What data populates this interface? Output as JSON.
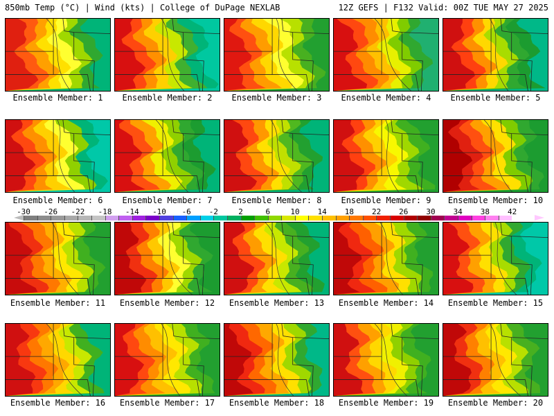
{
  "header": {
    "left_title": "850mb Temp (°C) | Wind (kts) | College of DuPage NEXLAB",
    "right_title": "12Z GEFS | F132 Valid: 00Z TUE MAY 27 2025"
  },
  "legend": {
    "ticks": [
      "-30",
      "-26",
      "-22",
      "-18",
      "-14",
      "-10",
      "-6",
      "-2",
      "2",
      "6",
      "10",
      "14",
      "18",
      "22",
      "26",
      "30",
      "34",
      "38",
      "42"
    ],
    "colors": [
      "#7f7f7f",
      "#8c8c8c",
      "#9a9a9a",
      "#a8a8a8",
      "#b6b6b6",
      "#c4c4c4",
      "#d2a0f0",
      "#c060f0",
      "#a020e0",
      "#7a00c8",
      "#5040e0",
      "#1860ff",
      "#00a0ff",
      "#00d0e8",
      "#00c8a0",
      "#00b060",
      "#00a000",
      "#40c000",
      "#90d800",
      "#d8e800",
      "#ffff00",
      "#ffe000",
      "#ffc000",
      "#ffa000",
      "#ff7800",
      "#ff5000",
      "#f02000",
      "#d80000",
      "#b00000",
      "#900000",
      "#a00050",
      "#c00090",
      "#e000c0",
      "#ff40e0",
      "#ff80f0",
      "#ffc0ff"
    ]
  },
  "members": [
    {
      "label": "Ensemble Member: 1",
      "scheme": [
        "#e02010",
        "#ff5a10",
        "#ffa000",
        "#ffe000",
        "#ffff30",
        "#a0d800",
        "#30a830",
        "#00b478"
      ]
    },
    {
      "label": "Ensemble Member: 2",
      "scheme": [
        "#d81010",
        "#ff4810",
        "#ff9000",
        "#ffd000",
        "#c8e800",
        "#40b030",
        "#00b478",
        "#00c8a0"
      ]
    },
    {
      "label": "Ensemble Member: 3",
      "scheme": [
        "#e01810",
        "#ff5010",
        "#ff9c00",
        "#ffd800",
        "#ffff30",
        "#b8e000",
        "#48b020",
        "#22a030"
      ]
    },
    {
      "label": "Ensemble Member: 4",
      "scheme": [
        "#d81010",
        "#ff4810",
        "#ff8c00",
        "#ffc000",
        "#e8f000",
        "#80cc00",
        "#30a830",
        "#20b070"
      ]
    },
    {
      "label": "Ensemble Member: 5",
      "scheme": [
        "#d01010",
        "#ff4010",
        "#ff9000",
        "#ffd800",
        "#a8dc00",
        "#30a830",
        "#1c9c30",
        "#00b888"
      ]
    },
    {
      "label": "Ensemble Member: 6",
      "scheme": [
        "#d01010",
        "#ff4810",
        "#ff9000",
        "#ffd000",
        "#ffff30",
        "#90d000",
        "#00b478",
        "#00c8a8"
      ]
    },
    {
      "label": "Ensemble Member: 7",
      "scheme": [
        "#d81010",
        "#ff5010",
        "#ffa000",
        "#f0f000",
        "#90d000",
        "#30a830",
        "#1c9c30",
        "#00b478"
      ]
    },
    {
      "label": "Ensemble Member: 8",
      "scheme": [
        "#d01010",
        "#ff4810",
        "#ff9800",
        "#ffe000",
        "#c0e000",
        "#50b820",
        "#22a030",
        "#00b478"
      ]
    },
    {
      "label": "Ensemble Member: 9",
      "scheme": [
        "#d01010",
        "#ff4010",
        "#ff9000",
        "#ffd000",
        "#f8f800",
        "#a0d800",
        "#40b020",
        "#22a030"
      ]
    },
    {
      "label": "Ensemble Member: 10",
      "scheme": [
        "#b00000",
        "#e02010",
        "#ff5010",
        "#ffa000",
        "#ffe000",
        "#80cc00",
        "#30a830",
        "#1c9c30"
      ]
    },
    {
      "label": "Ensemble Member: 11",
      "scheme": [
        "#c80c0c",
        "#f03010",
        "#ff7800",
        "#ffb000",
        "#ffe800",
        "#b8e000",
        "#40b020",
        "#22a030"
      ]
    },
    {
      "label": "Ensemble Member: 12",
      "scheme": [
        "#c00808",
        "#f03010",
        "#ff8000",
        "#ffc800",
        "#ffff30",
        "#a0d800",
        "#30a830",
        "#1c9c30"
      ]
    },
    {
      "label": "Ensemble Member: 13",
      "scheme": [
        "#d01010",
        "#ff4810",
        "#ff9c00",
        "#ffe000",
        "#c8e800",
        "#48b020",
        "#22a030",
        "#00b478"
      ]
    },
    {
      "label": "Ensemble Member: 14",
      "scheme": [
        "#c00808",
        "#f02810",
        "#ff6000",
        "#ffa000",
        "#ffe000",
        "#a0d800",
        "#40b020",
        "#22a030"
      ]
    },
    {
      "label": "Ensemble Member: 15",
      "scheme": [
        "#d81010",
        "#ff5010",
        "#ffa000",
        "#ffe000",
        "#a8dc00",
        "#30a830",
        "#00b478",
        "#00c8a8"
      ]
    },
    {
      "label": "Ensemble Member: 16",
      "scheme": [
        "#d01010",
        "#f83810",
        "#ff7800",
        "#ffa800",
        "#ffd800",
        "#c8e800",
        "#40b020",
        "#00b478"
      ]
    },
    {
      "label": "Ensemble Member: 17",
      "scheme": [
        "#d81010",
        "#ff4810",
        "#ff8c00",
        "#ffc000",
        "#ffe800",
        "#b8e000",
        "#40b020",
        "#22a030"
      ]
    },
    {
      "label": "Ensemble Member: 18",
      "scheme": [
        "#c00808",
        "#f02810",
        "#ff6800",
        "#ffa800",
        "#ffe000",
        "#a0d800",
        "#30a830",
        "#00b888"
      ]
    },
    {
      "label": "Ensemble Member: 19",
      "scheme": [
        "#d01010",
        "#ff5010",
        "#ffa000",
        "#ffd800",
        "#f0f000",
        "#90d000",
        "#40b020",
        "#22a030"
      ]
    },
    {
      "label": "Ensemble Member: 20",
      "scheme": [
        "#c00808",
        "#f03010",
        "#ff8000",
        "#ffc000",
        "#ffe800",
        "#b8e000",
        "#48b020",
        "#22a030"
      ]
    }
  ]
}
